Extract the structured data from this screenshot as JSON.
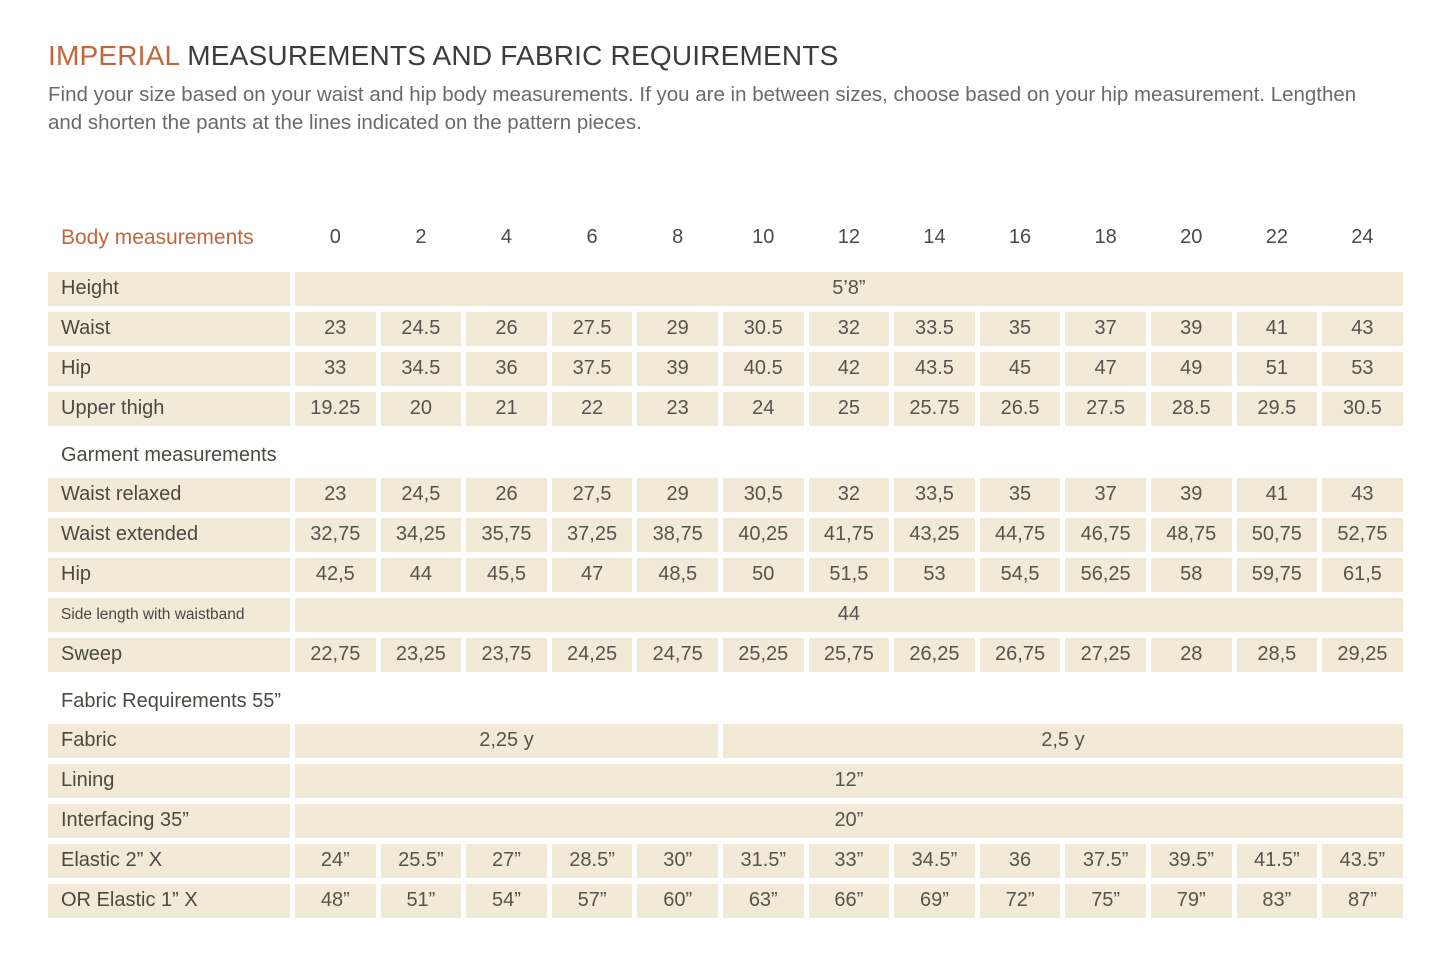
{
  "page": {
    "title_accent": "IMPERIAL",
    "title_rest": " MEASUREMENTS AND FABRIC REQUIREMENTS",
    "intro": "Find your size based on your waist and hip body measurements. If you are in between sizes, choose based on your hip measurement. Lengthen and shorten the pants at the lines indicated on the pattern pieces."
  },
  "colors": {
    "accent_orange": "#c2663e",
    "cell_beige": "#f2e9d6",
    "title_text": "#3d3c3a",
    "label_text": "#4c4943",
    "value_text": "#57544d",
    "intro_text": "#6b6a68"
  },
  "table": {
    "header_label": "Body measurements",
    "sizes": [
      "0",
      "2",
      "4",
      "6",
      "8",
      "10",
      "12",
      "14",
      "16",
      "18",
      "20",
      "22",
      "24"
    ],
    "rows": [
      {
        "kind": "span",
        "label": "Height",
        "value": "5’8”"
      },
      {
        "kind": "values",
        "label": "Waist",
        "values": [
          "23",
          "24.5",
          "26",
          "27.5",
          "29",
          "30.5",
          "32",
          "33.5",
          "35",
          "37",
          "39",
          "41",
          "43"
        ]
      },
      {
        "kind": "values",
        "label": "Hip",
        "values": [
          "33",
          "34.5",
          "36",
          "37.5",
          "39",
          "40.5",
          "42",
          "43.5",
          "45",
          "47",
          "49",
          "51",
          "53"
        ]
      },
      {
        "kind": "values",
        "label": "Upper thigh",
        "values": [
          "19.25",
          "20",
          "21",
          "22",
          "23",
          "24",
          "25",
          "25.75",
          "26.5",
          "27.5",
          "28.5",
          "29.5",
          "30.5"
        ]
      },
      {
        "kind": "section",
        "label": "Garment measurements"
      },
      {
        "kind": "values",
        "label": "Waist relaxed",
        "values": [
          "23",
          "24,5",
          "26",
          "27,5",
          "29",
          "30,5",
          "32",
          "33,5",
          "35",
          "37",
          "39",
          "41",
          "43"
        ]
      },
      {
        "kind": "values",
        "label": "Waist extended",
        "values": [
          "32,75",
          "34,25",
          "35,75",
          "37,25",
          "38,75",
          "40,25",
          "41,75",
          "43,25",
          "44,75",
          "46,75",
          "48,75",
          "50,75",
          "52,75"
        ]
      },
      {
        "kind": "values",
        "label": "Hip",
        "values": [
          "42,5",
          "44",
          "45,5",
          "47",
          "48,5",
          "50",
          "51,5",
          "53",
          "54,5",
          "56,25",
          "58",
          "59,75",
          "61,5"
        ]
      },
      {
        "kind": "span",
        "label": "Side length with waistband",
        "small_label": true,
        "value": "44"
      },
      {
        "kind": "values",
        "label": "Sweep",
        "values": [
          "22,75",
          "23,25",
          "23,75",
          "24,25",
          "24,75",
          "25,25",
          "25,75",
          "26,25",
          "26,75",
          "27,25",
          "28",
          "28,5",
          "29,25"
        ]
      },
      {
        "kind": "section",
        "label": "Fabric Requirements 55”"
      },
      {
        "kind": "multispan",
        "label": "Fabric",
        "spans": [
          {
            "text": "2,25 y",
            "cols": 5
          },
          {
            "text": "2,5 y",
            "cols": 8
          }
        ]
      },
      {
        "kind": "span",
        "label": "Lining",
        "value": "12”"
      },
      {
        "kind": "span",
        "label": "Interfacing 35”",
        "value": "20”"
      },
      {
        "kind": "values",
        "label": "Elastic 2” X",
        "values": [
          "24”",
          "25.5”",
          "27”",
          "28.5”",
          "30”",
          "31.5”",
          "33”",
          "34.5”",
          "36",
          "37.5”",
          "39.5”",
          "41.5”",
          "43.5”"
        ]
      },
      {
        "kind": "values",
        "label": "OR Elastic 1” X",
        "values": [
          "48”",
          "51”",
          "54”",
          "57”",
          "60”",
          "63”",
          "66”",
          "69”",
          "72”",
          "75”",
          "79”",
          "83”",
          "87”"
        ]
      }
    ]
  }
}
